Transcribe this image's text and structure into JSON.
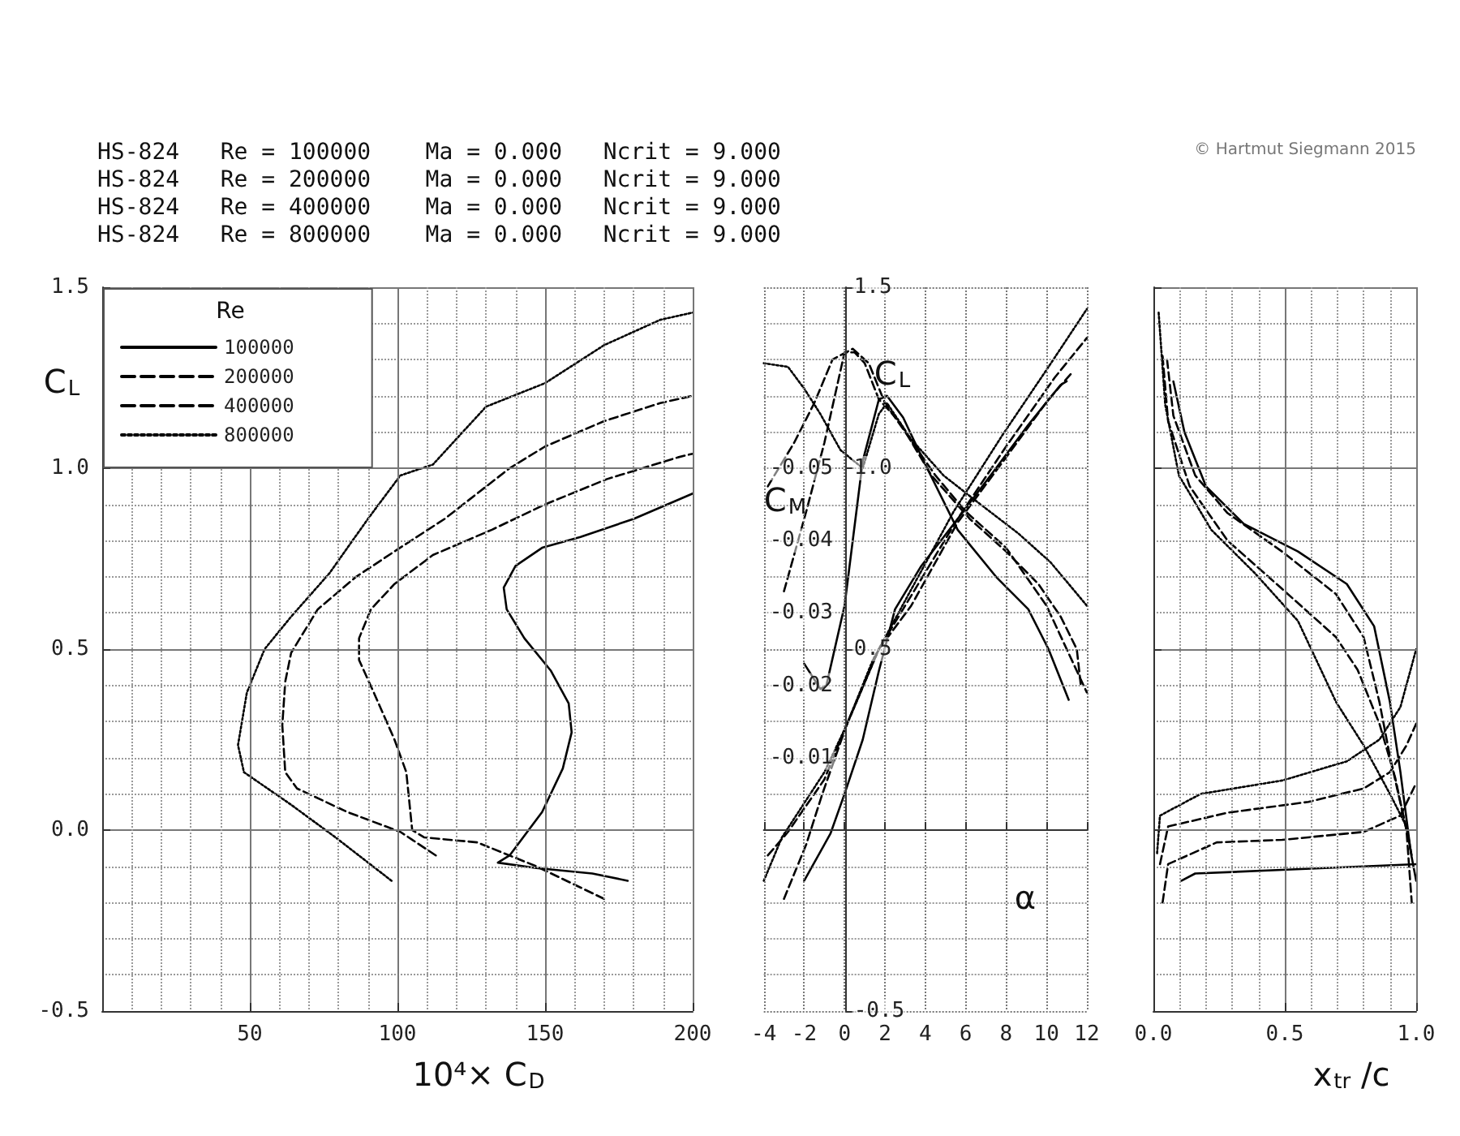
{
  "chart_data": [
    {
      "type": "line",
      "xlabel": "10⁴× C$_{D}$",
      "ylabel": "C$_{L}$",
      "legend_title": "Re",
      "legend": "top left",
      "grid": true,
      "annotations": [
        "HS-824   Re = 100000    Ma = 0.000   Ncrit = 9.000",
        "HS-824   Re = 200000    Ma = 0.000   Ncrit = 9.000",
        "HS-824   Re = 400000    Ma = 0.000   Ncrit = 9.000",
        "HS-824   Re = 800000    Ma = 0.000   Ncrit = 9.000"
      ],
      "xlim": [
        0,
        200
      ],
      "xticks": [
        50,
        100,
        150,
        200
      ],
      "ylim": [
        -0.5,
        1.5
      ],
      "yticks": [
        {
          "value": -0.5,
          "label": "-0.5"
        },
        {
          "value": 0,
          "label": "0.0"
        },
        {
          "value": 0.5,
          "label": "0.5"
        },
        {
          "value": 1,
          "label": "1.0"
        },
        {
          "value": 1.5,
          "label": "1.5"
        }
      ],
      "series": [
        {
          "name": "100000",
          "color": "#000000",
          "line_style": "solid",
          "x": [
            178,
            166,
            147,
            134,
            138,
            149,
            156,
            159,
            158,
            152,
            143,
            137,
            136,
            140,
            149,
            162,
            180,
            200
          ],
          "values": [
            -0.14,
            -0.12,
            -0.105,
            -0.09,
            -0.07,
            0.05,
            0.17,
            0.27,
            0.35,
            0.44,
            0.53,
            0.61,
            0.67,
            0.73,
            0.78,
            0.81,
            0.86,
            0.93
          ]
        },
        {
          "name": "200000",
          "color": "#000000",
          "line_style": "dashed",
          "x": [
            170,
            147,
            127,
            109,
            105,
            103,
            99,
            92,
            87,
            87,
            91,
            99,
            112,
            132,
            150,
            171,
            195,
            200
          ],
          "values": [
            -0.19,
            -0.1,
            -0.034,
            -0.02,
            0,
            0.16,
            0.25,
            0.38,
            0.47,
            0.53,
            0.61,
            0.68,
            0.76,
            0.83,
            0.9,
            0.97,
            1.03,
            1.04
          ]
        },
        {
          "name": "400000",
          "color": "#000000",
          "line_style": "dashed",
          "x": [
            113,
            101,
            83,
            66,
            62,
            61,
            62,
            64,
            73,
            86,
            99,
            116,
            138,
            150,
            170,
            189,
            200
          ],
          "values": [
            -0.07,
            -0.005,
            0.05,
            0.115,
            0.16,
            0.29,
            0.41,
            0.49,
            0.61,
            0.7,
            0.77,
            0.86,
            1.0,
            1.06,
            1.13,
            1.18,
            1.2
          ]
        },
        {
          "name": "800000",
          "color": "#000000",
          "line_style": "dotted",
          "x": [
            98,
            79,
            64,
            48,
            46,
            49,
            55,
            64,
            77,
            90,
            101,
            112,
            130,
            150,
            170,
            189,
            200
          ],
          "values": [
            -0.14,
            -0.02,
            0.07,
            0.16,
            0.235,
            0.38,
            0.5,
            0.59,
            0.71,
            0.86,
            0.98,
            1.01,
            1.17,
            1.235,
            1.34,
            1.41,
            1.43
          ]
        }
      ]
    },
    {
      "type": "line",
      "xlabel": "α",
      "ylabel": "C$_{L}$",
      "y2label": "C$_{M}$",
      "grid": true,
      "xlim": [
        -4,
        12
      ],
      "xticks": [
        -4,
        -2,
        0,
        2,
        4,
        6,
        8,
        10,
        12
      ],
      "ylim": [
        -0.5,
        1.5
      ],
      "yticks": [
        {
          "value": -0.5,
          "label": "-0.5"
        },
        {
          "value": 0.5,
          "label": "0.5"
        },
        {
          "value": 1,
          "label": "1.0"
        },
        {
          "value": 1.5,
          "label": "1.5"
        }
      ],
      "y2lim": [
        0.025,
        -0.075
      ],
      "y2ticks": [
        -0.05,
        -0.04,
        -0.03,
        -0.02,
        -0.01
      ],
      "series": [
        {
          "color": "#000000",
          "line_style": "solid",
          "x": [
            -2,
            -0.7,
            0,
            0.9,
            1.7,
            2.5,
            3.8,
            5.6,
            7.5,
            9.1,
            10.7,
            11
          ],
          "values": [
            -0.14,
            -0.01,
            0.1,
            0.25,
            0.44,
            0.61,
            0.73,
            0.86,
            1.0,
            1.12,
            1.23,
            1.24
          ]
        },
        {
          "color": "#000000",
          "line_style": "dashed",
          "x": [
            -3,
            -1.9,
            -1.1,
            0.1,
            1.7,
            3.3,
            5.6,
            8,
            10.1,
            11.2
          ],
          "values": [
            -0.19,
            -0.04,
            0.1,
            0.29,
            0.5,
            0.62,
            0.85,
            1.03,
            1.19,
            1.26
          ]
        },
        {
          "color": "#000000",
          "line_style": "dashed",
          "x": [
            -3.8,
            -2.8,
            -1,
            0.1,
            1.7,
            5.6,
            8,
            10.4,
            12
          ],
          "values": [
            -0.07,
            -0.005,
            0.14,
            0.29,
            0.5,
            0.86,
            1.06,
            1.25,
            1.36
          ]
        },
        {
          "color": "#000000",
          "line_style": "dotted",
          "x": [
            -4,
            -3.1,
            -1,
            0.1,
            1.4,
            5.4,
            7.8,
            10.1,
            12
          ],
          "values": [
            -0.14,
            -0.02,
            0.16,
            0.29,
            0.47,
            0.88,
            1.09,
            1.28,
            1.44
          ]
        },
        {
          "color": "#000000",
          "line_style": "solid",
          "axis": "y2",
          "x": [
            -2,
            -1.2,
            -0.9,
            0,
            0.9,
            1.7,
            2.1,
            2.9,
            4,
            5.6,
            7.5,
            9.1,
            10.1,
            11.1
          ],
          "values": [
            -0.023,
            -0.0195,
            -0.02,
            -0.031,
            -0.051,
            -0.0595,
            -0.06,
            -0.057,
            -0.0505,
            -0.0415,
            -0.035,
            -0.0305,
            -0.025,
            -0.018
          ]
        },
        {
          "color": "#000000",
          "line_style": "dashed",
          "axis": "y2",
          "x": [
            -3,
            -1.9,
            -1,
            0,
            0.5,
            1,
            1.7,
            2.7,
            4.3,
            6.2,
            8,
            9.6,
            10.7,
            11.5,
            11.7
          ],
          "values": [
            -0.033,
            -0.044,
            -0.0535,
            -0.066,
            -0.066,
            -0.0645,
            -0.0595,
            -0.0565,
            -0.049,
            -0.043,
            -0.0385,
            -0.034,
            -0.0295,
            -0.025,
            -0.02
          ]
        },
        {
          "color": "#000000",
          "line_style": "dashed",
          "axis": "y2",
          "x": [
            -3.8,
            -2.5,
            -1.5,
            -0.6,
            0.4,
            1.2,
            2,
            3,
            4.5,
            6,
            8,
            10,
            12
          ],
          "values": [
            -0.0475,
            -0.0535,
            -0.059,
            -0.065,
            -0.0665,
            -0.0645,
            -0.059,
            -0.055,
            -0.049,
            -0.044,
            -0.039,
            -0.031,
            -0.019
          ]
        },
        {
          "color": "#000000",
          "line_style": "dotted",
          "axis": "y2",
          "x": [
            -4,
            -2.8,
            -2,
            -1.2,
            -0.2,
            0.9,
            1.7,
            2.1,
            3.3,
            4.9,
            6.5,
            8.6,
            10.2,
            12
          ],
          "values": [
            -0.0645,
            -0.064,
            -0.061,
            -0.0575,
            -0.0525,
            -0.05,
            -0.0575,
            -0.059,
            -0.054,
            -0.049,
            -0.0455,
            -0.041,
            -0.037,
            -0.031
          ]
        }
      ]
    },
    {
      "type": "line",
      "xlabel": "x$_{tr}$ /c",
      "grid": true,
      "tick_labels": "x",
      "annotations": [
        "© Hartmut Siegmann 2015"
      ],
      "xlim": [
        0,
        1
      ],
      "xticks": [
        {
          "value": 0,
          "label": "0.0"
        },
        {
          "value": 0.5,
          "label": "0.5"
        },
        {
          "value": 1,
          "label": "1.0"
        }
      ],
      "ylim": [
        -0.5,
        1.5
      ],
      "yticks": [
        -0.5,
        0,
        0.5,
        1,
        1.5
      ],
      "series": [
        {
          "color": "#000000",
          "line_style": "solid",
          "x": [
            0.076,
            0.118,
            0.2,
            0.344,
            0.55,
            0.736,
            0.84,
            0.9,
            0.94,
            0.98,
            1
          ],
          "values": [
            1.24,
            1.1,
            0.95,
            0.846,
            0.77,
            0.68,
            0.563,
            0.354,
            0.16,
            -0.064,
            -0.14
          ]
        },
        {
          "color": "#000000",
          "line_style": "solid",
          "x": [
            0.107,
            0.159,
            0.49,
            1
          ],
          "values": [
            -0.14,
            -0.12,
            -0.11,
            -0.094
          ]
        },
        {
          "color": "#000000",
          "line_style": "dashed",
          "x": [
            0.052,
            0.076,
            0.159,
            0.282,
            0.489,
            0.695,
            0.8,
            0.86,
            0.9,
            0.963,
            0.983
          ],
          "values": [
            1.3,
            1.145,
            0.98,
            0.876,
            0.77,
            0.652,
            0.533,
            0.354,
            0.204,
            0,
            -0.2
          ]
        },
        {
          "color": "#000000",
          "line_style": "dashed",
          "x": [
            0.035,
            0.056,
            0.241,
            0.49,
            0.8,
            0.94,
            1
          ],
          "values": [
            -0.2,
            -0.094,
            -0.034,
            -0.027,
            -0.005,
            0.04,
            0.13
          ]
        },
        {
          "color": "#000000",
          "line_style": "dashed",
          "x": [
            0.035,
            0.056,
            0.138,
            0.282,
            0.489,
            0.695,
            0.777,
            0.86,
            0.92,
            0.963,
            0.983
          ],
          "values": [
            1.31,
            1.13,
            0.95,
            0.8,
            0.667,
            0.533,
            0.443,
            0.294,
            0.145,
            0,
            -0.07
          ]
        },
        {
          "color": "#000000",
          "line_style": "dashed",
          "x": [
            0.025,
            0.056,
            0.282,
            0.59,
            0.8,
            0.9,
            0.963,
            1
          ],
          "values": [
            -0.094,
            0.01,
            0.048,
            0.078,
            0.115,
            0.16,
            0.234,
            0.294
          ]
        },
        {
          "color": "#000000",
          "line_style": "dotted",
          "x": [
            0.02,
            0.045,
            0.097,
            0.22,
            0.386,
            0.55,
            0.695,
            0.8,
            0.9,
            0.963,
            0.98
          ],
          "values": [
            1.43,
            1.175,
            0.98,
            0.83,
            0.71,
            0.578,
            0.354,
            0.234,
            0.1,
            0.01,
            -0.06
          ]
        },
        {
          "color": "#000000",
          "line_style": "dotted",
          "x": [
            0.014,
            0.025,
            0.18,
            0.49,
            0.736,
            0.86,
            0.94,
            1
          ],
          "values": [
            -0.064,
            0.04,
            0.1,
            0.137,
            0.19,
            0.25,
            0.34,
            0.5
          ]
        }
      ]
    }
  ]
}
